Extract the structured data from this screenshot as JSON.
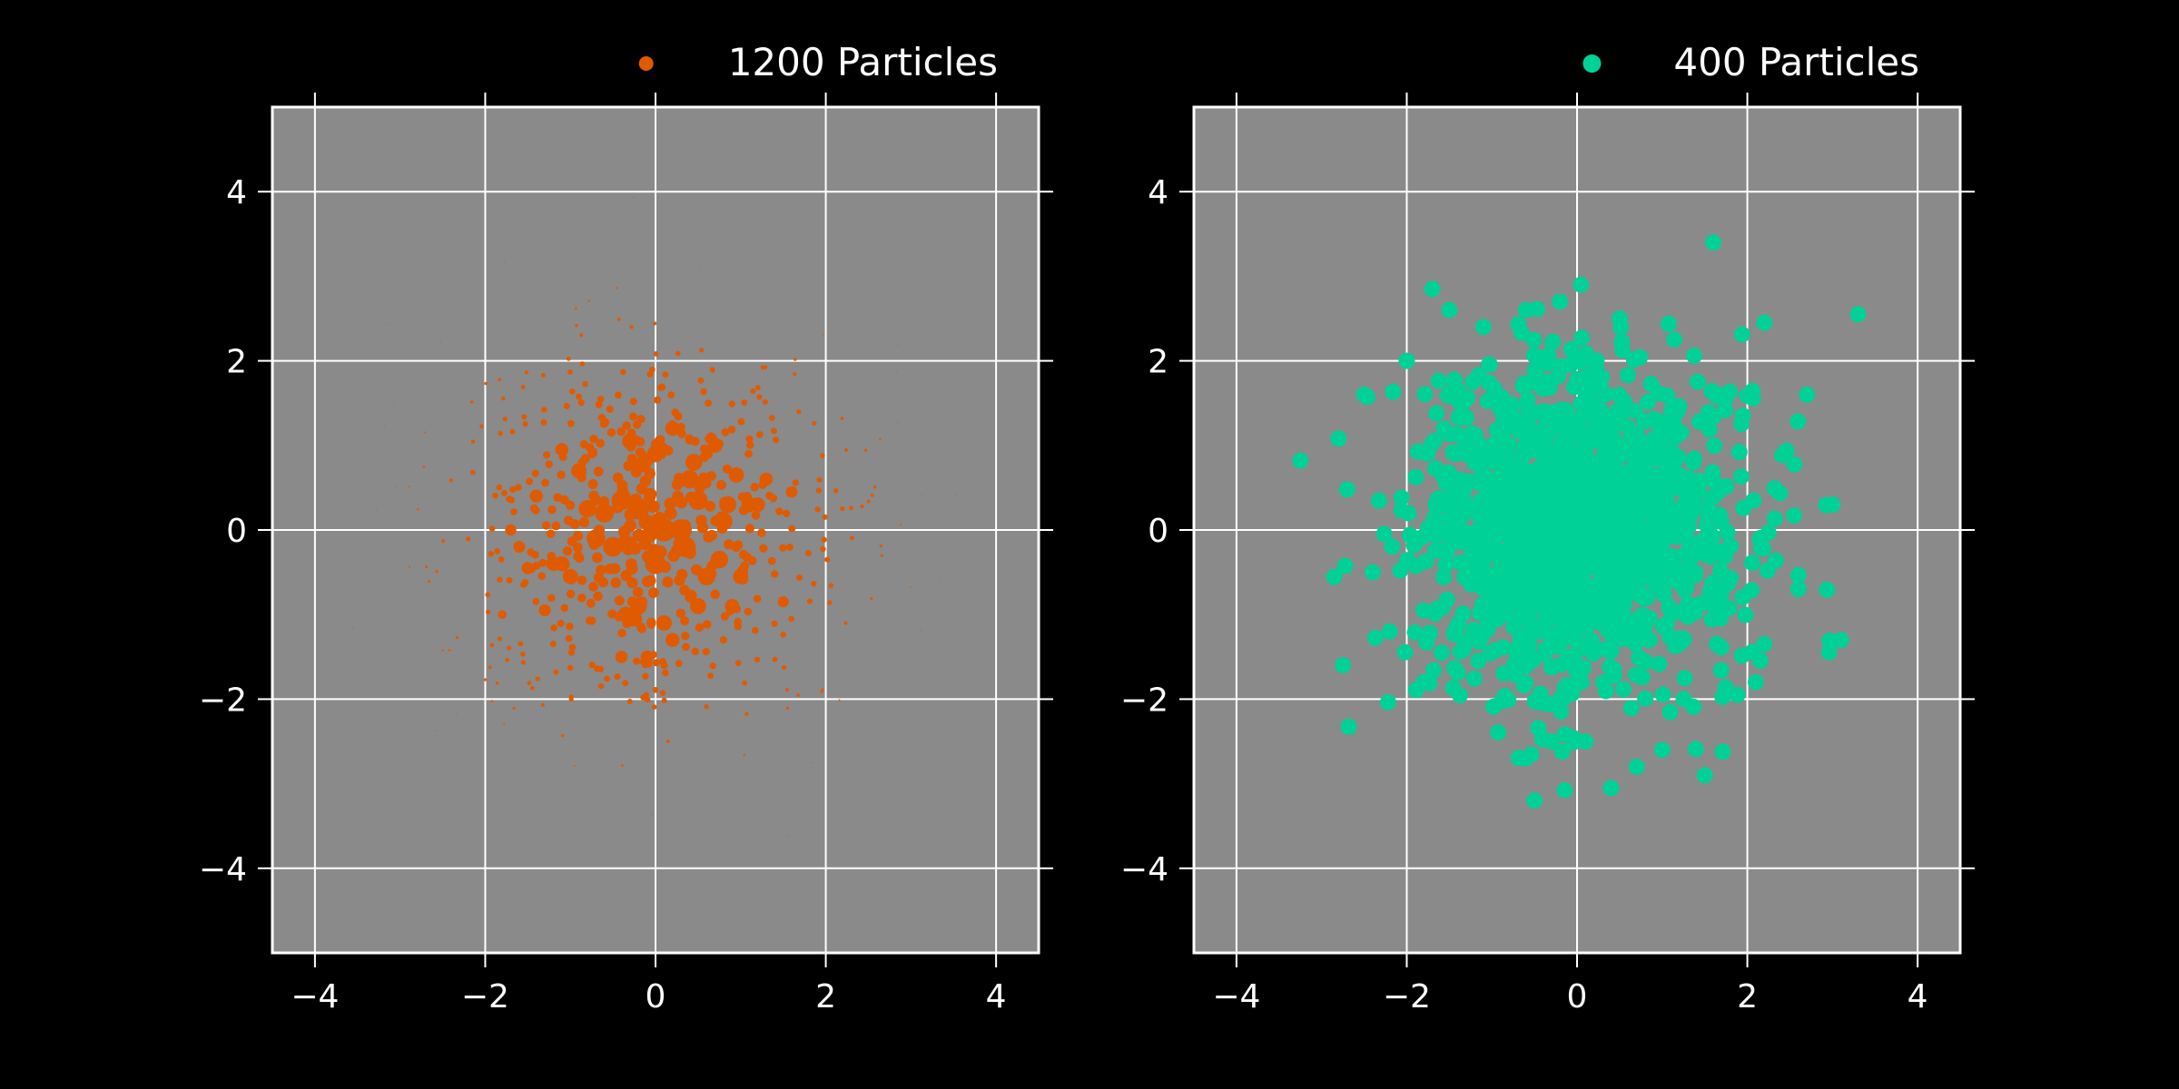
{
  "page": {
    "background": "#000000"
  },
  "chart_data": [
    {
      "type": "scatter",
      "legend": {
        "label": "1200 Particles",
        "placement": "top-right"
      },
      "color": "#e05a00",
      "plot_background": "#8a8a8a",
      "grid": true,
      "xlim": [
        -4.5,
        4.5
      ],
      "ylim": [
        -5,
        5
      ],
      "xticks": [
        -4,
        -2,
        0,
        2,
        4
      ],
      "yticks": [
        -4,
        -2,
        0,
        2,
        4
      ],
      "xticklabels": [
        "−4",
        "−2",
        "0",
        "2",
        "4"
      ],
      "yticklabels": [
        "−4",
        "−2",
        "0",
        "2",
        "4"
      ],
      "marker_size_note": "marker size decreases with distance from origin",
      "series": [
        {
          "x": [
            -0.4,
            -0.2,
            0.0,
            0.2,
            0.4,
            0.5,
            0.1,
            -0.5,
            -0.6,
            -0.3,
            -0.7,
            -0.8,
            0.3,
            0.35,
            0.6,
            0.75,
            0.9,
            1.0,
            0.8,
            0.5,
            0.2,
            -0.2,
            -0.25,
            -0.35,
            -0.9,
            -1.1,
            -1.2,
            -1.0,
            0.7,
            0.85,
            1.1,
            1.3,
            1.5,
            1.6,
            0.0,
            -0.1,
            0.1,
            -1.4,
            -1.5,
            -1.3,
            -1.6,
            -1.7,
            -1.8,
            -0.4,
            1.2,
            -1.1,
            0.45,
            0.95
          ],
          "y": [
            0.35,
            0.25,
            0.9,
            1.2,
            0.6,
            0.35,
            0.0,
            -0.2,
            0.2,
            1.05,
            -0.1,
            0.25,
            0.0,
            -0.2,
            -0.55,
            -0.35,
            -0.9,
            -0.55,
            0.1,
            -0.9,
            -1.3,
            -0.9,
            -1.05,
            -1.0,
            0.7,
            0.95,
            -0.4,
            -0.55,
            1.0,
            0.3,
            0.3,
            0.6,
            -0.85,
            0.45,
            -0.4,
            -1.5,
            -1.1,
            0.4,
            -0.45,
            -0.95,
            -0.2,
            0.0,
            -1.0,
            -1.5,
            0.3,
            -0.4,
            0.8,
            0.65
          ]
        }
      ]
    },
    {
      "type": "scatter",
      "legend": {
        "label": "400 Particles",
        "placement": "top-right"
      },
      "color": "#00d196",
      "plot_background": "#8a8a8a",
      "grid": true,
      "xlim": [
        -4.5,
        4.5
      ],
      "ylim": [
        -5,
        5
      ],
      "xticks": [
        -4,
        -2,
        0,
        2,
        4
      ],
      "yticks": [
        -4,
        -2,
        0,
        2,
        4
      ],
      "xticklabels": [
        "−4",
        "−2",
        "0",
        "2",
        "4"
      ],
      "yticklabels": [
        "−4",
        "−2",
        "0",
        "2",
        "4"
      ],
      "series": [
        {
          "x": [
            -3.25,
            -2.8,
            -2.75,
            -2.5,
            -2.4,
            -2.0,
            -1.7,
            -1.5,
            -1.1,
            -0.6,
            -0.5,
            -0.3,
            0.1,
            1.6,
            3.3,
            3.0,
            3.1,
            2.7,
            2.6,
            2.2,
            1.5,
            1.0,
            0.4,
            -0.2,
            -1.8,
            -2.2,
            2.1,
            0.5,
            0.7,
            -0.6
          ],
          "y": [
            0.82,
            1.08,
            -1.6,
            1.6,
            -0.5,
            2.0,
            2.85,
            2.6,
            2.4,
            2.6,
            -3.2,
            -2.5,
            -2.5,
            3.4,
            2.55,
            0.3,
            -1.3,
            1.6,
            -0.7,
            2.45,
            -2.9,
            -2.6,
            -3.05,
            2.7,
            -1.8,
            -1.2,
            -1.8,
            2.5,
            -2.8,
            -2.7
          ]
        }
      ]
    }
  ]
}
